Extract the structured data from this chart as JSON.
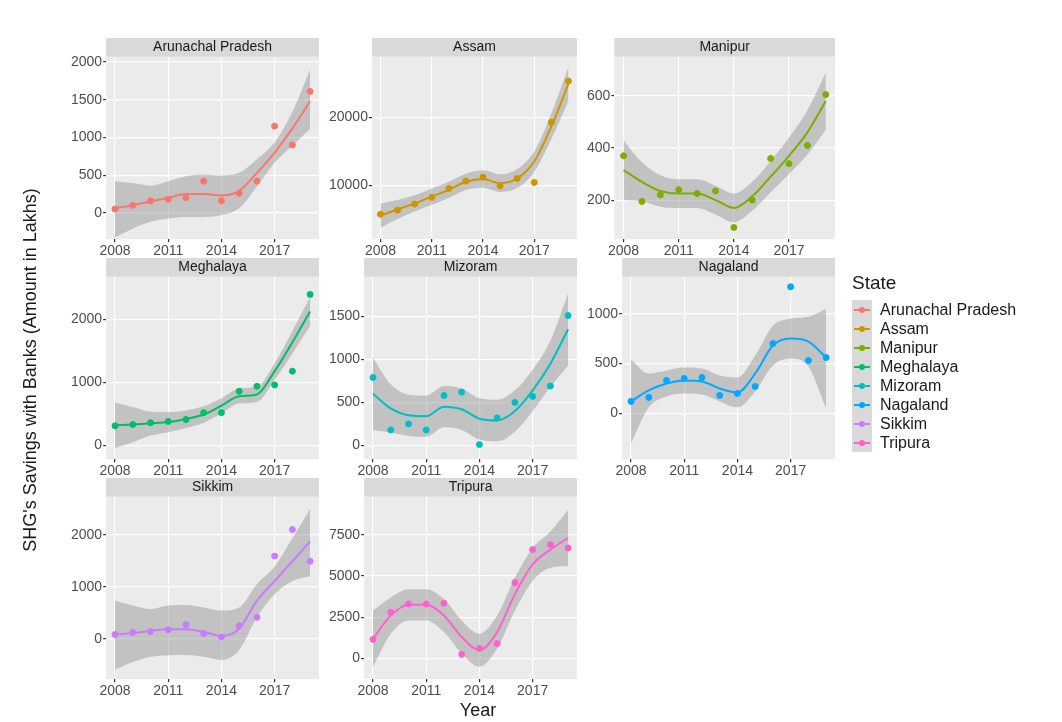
{
  "chart_data": [
    {
      "type": "scatter",
      "title": "Arunachal Pradesh",
      "x": [
        2008,
        2009,
        2010,
        2011,
        2012,
        2013,
        2014,
        2015,
        2016,
        2017,
        2018,
        2019
      ],
      "xlim": [
        2007.5,
        2019.5
      ],
      "xticks": [
        2008,
        2011,
        2014,
        2017
      ],
      "ylim": [
        -350,
        2070
      ],
      "yticks": [
        0,
        500,
        1000,
        1500,
        2000
      ],
      "grid": true,
      "legend": "right",
      "marker": "circle",
      "series": [
        {
          "name": "Arunachal Pradesh",
          "color": "#f8766d",
          "values": [
            50,
            100,
            160,
            180,
            200,
            420,
            160,
            260,
            420,
            1150,
            900,
            1610
          ]
        },
        {
          "type": "line",
          "marker": "none",
          "color": "#f8766d",
          "values": [
            60,
            100,
            150,
            200,
            250,
            250,
            230,
            290,
            530,
            800,
            1120,
            1480
          ],
          "lower": [
            -325,
            -210,
            -120,
            -75,
            -55,
            -55,
            -30,
            60,
            350,
            665,
            890,
            1115
          ],
          "upper": [
            420,
            395,
            360,
            420,
            485,
            510,
            495,
            530,
            710,
            935,
            1340,
            1905
          ]
        }
      ]
    },
    {
      "type": "scatter",
      "title": "Assam",
      "x": [
        2008,
        2009,
        2010,
        2011,
        2012,
        2013,
        2014,
        2015,
        2016,
        2017,
        2018,
        2019
      ],
      "xlim": [
        2007.5,
        2019.5
      ],
      "xticks": [
        2008,
        2011,
        2014,
        2017
      ],
      "ylim": [
        2000,
        29000
      ],
      "yticks": [
        10000,
        20000
      ],
      "grid": true,
      "legend": "right",
      "marker": "circle",
      "series": [
        {
          "name": "Assam",
          "color": "#cd9600",
          "values": [
            5700,
            6300,
            7200,
            8200,
            9500,
            10600,
            11200,
            9900,
            11000,
            10400,
            19300,
            25400
          ]
        },
        {
          "type": "line",
          "marker": "none",
          "color": "#cd9600",
          "values": [
            5500,
            6400,
            7300,
            8300,
            9300,
            10500,
            10900,
            10300,
            11000,
            13500,
            18700,
            25000
          ],
          "lower": [
            3700,
            5000,
            6100,
            7100,
            8100,
            9300,
            9600,
            9000,
            9600,
            12000,
            16800,
            22500
          ],
          "upper": [
            7300,
            7800,
            8500,
            9500,
            10500,
            11700,
            12200,
            11600,
            12400,
            15000,
            20600,
            27500
          ]
        }
      ]
    },
    {
      "type": "scatter",
      "title": "Manipur",
      "x": [
        2008,
        2009,
        2010,
        2011,
        2012,
        2013,
        2014,
        2015,
        2016,
        2017,
        2018,
        2019
      ],
      "xlim": [
        2007.5,
        2019.5
      ],
      "xticks": [
        2008,
        2011,
        2014,
        2017
      ],
      "ylim": [
        50,
        750
      ],
      "yticks": [
        200,
        400,
        600
      ],
      "grid": true,
      "legend": "right",
      "marker": "circle",
      "series": [
        {
          "name": "Manipur",
          "color": "#7cae00",
          "values": [
            370,
            195,
            220,
            240,
            225,
            235,
            95,
            200,
            360,
            340,
            410,
            605
          ]
        },
        {
          "type": "line",
          "marker": "none",
          "color": "#7cae00",
          "values": [
            315,
            270,
            235,
            225,
            225,
            200,
            170,
            215,
            290,
            370,
            460,
            580
          ],
          "lower": [
            200,
            195,
            175,
            170,
            170,
            145,
            115,
            160,
            230,
            300,
            375,
            470
          ],
          "upper": [
            430,
            345,
            295,
            280,
            280,
            255,
            225,
            270,
            350,
            440,
            545,
            690
          ]
        }
      ]
    },
    {
      "type": "scatter",
      "title": "Meghalaya",
      "ylabel": "SHG's Savings with Banks (Amount in Lakhs)",
      "x": [
        2008,
        2009,
        2010,
        2011,
        2012,
        2013,
        2014,
        2015,
        2016,
        2017,
        2018,
        2019
      ],
      "xlim": [
        2007.5,
        2019.5
      ],
      "xticks": [
        2008,
        2011,
        2014,
        2017
      ],
      "ylim": [
        -220,
        2680
      ],
      "yticks": [
        0,
        1000,
        2000
      ],
      "grid": true,
      "legend": "right",
      "marker": "circle",
      "series": [
        {
          "name": "Meghalaya",
          "color": "#00be67",
          "values": [
            310,
            330,
            360,
            380,
            410,
            520,
            520,
            860,
            940,
            960,
            1180,
            2400
          ]
        },
        {
          "type": "line",
          "marker": "none",
          "color": "#00be67",
          "values": [
            320,
            330,
            350,
            370,
            420,
            490,
            630,
            780,
            810,
            1180,
            1640,
            2130
          ],
          "lower": [
            -40,
            50,
            155,
            210,
            275,
            360,
            510,
            665,
            690,
            1045,
            1460,
            1900
          ],
          "upper": [
            680,
            610,
            535,
            530,
            555,
            620,
            750,
            905,
            930,
            1305,
            1820,
            2360
          ]
        }
      ]
    },
    {
      "type": "scatter",
      "title": "Mizoram",
      "x": [
        2008,
        2009,
        2010,
        2011,
        2012,
        2013,
        2014,
        2015,
        2016,
        2017,
        2018,
        2019
      ],
      "xlim": [
        2007.5,
        2019.5
      ],
      "xticks": [
        2008,
        2011,
        2014,
        2017
      ],
      "ylim": [
        -160,
        1960
      ],
      "yticks": [
        0,
        500,
        1000,
        1500
      ],
      "grid": true,
      "legend": "right",
      "marker": "circle",
      "series": [
        {
          "name": "Mizoram",
          "color": "#00bfc4",
          "values": [
            790,
            180,
            250,
            180,
            580,
            620,
            10,
            320,
            500,
            570,
            690,
            1510
          ]
        },
        {
          "type": "line",
          "marker": "none",
          "color": "#00bfc4",
          "values": [
            600,
            430,
            350,
            340,
            450,
            420,
            310,
            290,
            400,
            640,
            950,
            1350
          ],
          "lower": [
            180,
            150,
            110,
            100,
            210,
            180,
            70,
            50,
            160,
            400,
            680,
            930
          ],
          "upper": [
            1020,
            710,
            590,
            580,
            690,
            660,
            550,
            530,
            640,
            880,
            1220,
            1770
          ]
        }
      ]
    },
    {
      "type": "scatter",
      "title": "Nagaland",
      "legend_title": "State",
      "x": [
        2008,
        2009,
        2010,
        2011,
        2012,
        2013,
        2014,
        2015,
        2016,
        2017,
        2018,
        2019
      ],
      "xlim": [
        2007.5,
        2019.5
      ],
      "xticks": [
        2008,
        2011,
        2014,
        2017
      ],
      "ylim": [
        -460,
        1370
      ],
      "yticks": [
        0,
        500,
        1000
      ],
      "grid": true,
      "legend": "right",
      "marker": "circle",
      "series": [
        {
          "name": "Nagaland",
          "color": "#00a9ff",
          "values": [
            120,
            160,
            330,
            350,
            360,
            180,
            200,
            270,
            700,
            1270,
            530,
            560
          ]
        },
        {
          "type": "line",
          "marker": "none",
          "color": "#00a9ff",
          "values": [
            120,
            230,
            300,
            330,
            320,
            250,
            210,
            400,
            680,
            750,
            720,
            560
          ],
          "lower": [
            -300,
            60,
            170,
            200,
            190,
            120,
            60,
            220,
            480,
            550,
            470,
            50
          ],
          "upper": [
            540,
            400,
            430,
            460,
            450,
            380,
            360,
            580,
            880,
            950,
            970,
            1050
          ]
        }
      ]
    },
    {
      "type": "scatter",
      "title": "Sikkim",
      "x": [
        2008,
        2009,
        2010,
        2011,
        2012,
        2013,
        2014,
        2015,
        2016,
        2017,
        2018,
        2019
      ],
      "xlim": [
        2007.5,
        2019.5
      ],
      "xticks": [
        2008,
        2011,
        2014,
        2017
      ],
      "ylim": [
        -780,
        2730
      ],
      "yticks": [
        0,
        1000,
        2000
      ],
      "grid": true,
      "legend": "right",
      "marker": "circle",
      "series": [
        {
          "name": "Sikkim",
          "color": "#c77cff",
          "values": [
            80,
            120,
            140,
            170,
            270,
            100,
            30,
            250,
            410,
            1590,
            2100,
            1490
          ]
        },
        {
          "type": "line",
          "marker": "none",
          "color": "#c77cff",
          "values": [
            80,
            110,
            150,
            180,
            180,
            130,
            50,
            190,
            730,
            1110,
            1490,
            1870
          ],
          "lower": [
            -600,
            -450,
            -350,
            -320,
            -315,
            -350,
            -410,
            -220,
            410,
            855,
            1110,
            1200
          ],
          "upper": [
            730,
            640,
            570,
            640,
            650,
            600,
            540,
            600,
            1050,
            1390,
            1930,
            2500
          ]
        }
      ]
    },
    {
      "type": "scatter",
      "title": "Tripura",
      "xlabel": "Year",
      "x": [
        2008,
        2009,
        2010,
        2011,
        2012,
        2013,
        2014,
        2015,
        2016,
        2017,
        2018,
        2019
      ],
      "xlim": [
        2007.5,
        2019.5
      ],
      "xticks": [
        2008,
        2011,
        2014,
        2017
      ],
      "ylim": [
        -1260,
        9800
      ],
      "yticks": [
        0,
        2500,
        5000,
        7500
      ],
      "grid": true,
      "legend": "right",
      "marker": "circle",
      "series": [
        {
          "name": "Tripura",
          "color": "#ff61cc",
          "values": [
            1150,
            2800,
            3300,
            3300,
            3350,
            250,
            600,
            900,
            4600,
            6600,
            6900,
            6700
          ]
        },
        {
          "type": "line",
          "marker": "none",
          "color": "#ff61cc",
          "values": [
            1200,
            2600,
            3250,
            3250,
            2600,
            1300,
            500,
            1600,
            3900,
            5700,
            6600,
            7300
          ],
          "lower": [
            -500,
            1500,
            2300,
            2300,
            1600,
            300,
            -500,
            600,
            2900,
            4700,
            5500,
            5600
          ],
          "upper": [
            2900,
            3700,
            4200,
            4200,
            3600,
            2300,
            1500,
            2600,
            4900,
            6700,
            7700,
            9000
          ]
        }
      ]
    }
  ]
}
